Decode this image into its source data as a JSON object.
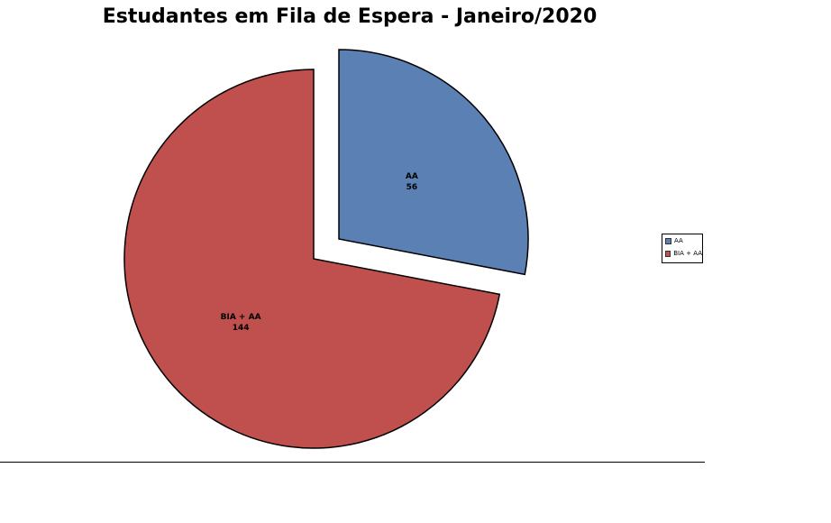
{
  "chart_data": {
    "type": "pie",
    "title": "Estudantes em Fila de Espera - Janeiro/2020",
    "slices": [
      {
        "label": "AA",
        "value": 56,
        "color": "#5B80B3",
        "exploded": true
      },
      {
        "label": "BIA + AA",
        "value": 144,
        "color": "#C0504D",
        "exploded": false
      }
    ],
    "legend": {
      "position": "right",
      "items": [
        "AA",
        "BIA + AA"
      ]
    }
  }
}
